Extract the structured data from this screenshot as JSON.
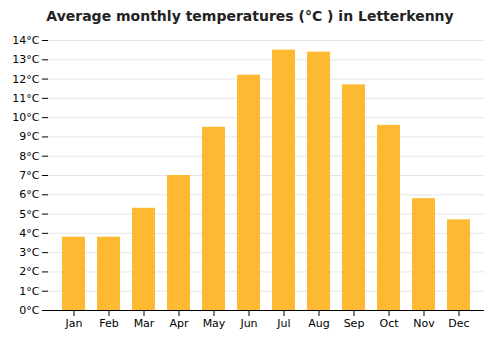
{
  "chart_data": {
    "type": "bar",
    "title": "Average monthly temperatures (°C ) in Letterkenny",
    "categories": [
      "Jan",
      "Feb",
      "Mar",
      "Apr",
      "May",
      "Jun",
      "Jul",
      "Aug",
      "Sep",
      "Oct",
      "Nov",
      "Dec"
    ],
    "values": [
      3.8,
      3.8,
      5.3,
      7.0,
      9.5,
      12.2,
      13.5,
      13.4,
      11.7,
      9.6,
      5.8,
      4.7
    ],
    "color": "#FDB931",
    "ylim": [
      0,
      14
    ],
    "yticks": [
      {
        "value": 0,
        "label": "0°C"
      },
      {
        "value": 1,
        "label": "1°C"
      },
      {
        "value": 2,
        "label": "2°C"
      },
      {
        "value": 3,
        "label": "3°C"
      },
      {
        "value": 4,
        "label": "4°C"
      },
      {
        "value": 5,
        "label": "5°C"
      },
      {
        "value": 6,
        "label": "6°C"
      },
      {
        "value": 7,
        "label": "7°C"
      },
      {
        "value": 8,
        "label": "8°C"
      },
      {
        "value": 9,
        "label": "9°C"
      },
      {
        "value": 10,
        "label": "10°C"
      },
      {
        "value": 11,
        "label": "11°C"
      },
      {
        "value": 12,
        "label": "12°C"
      },
      {
        "value": 13,
        "label": "13°C"
      },
      {
        "value": 14,
        "label": "14°C"
      }
    ],
    "grid": true
  }
}
